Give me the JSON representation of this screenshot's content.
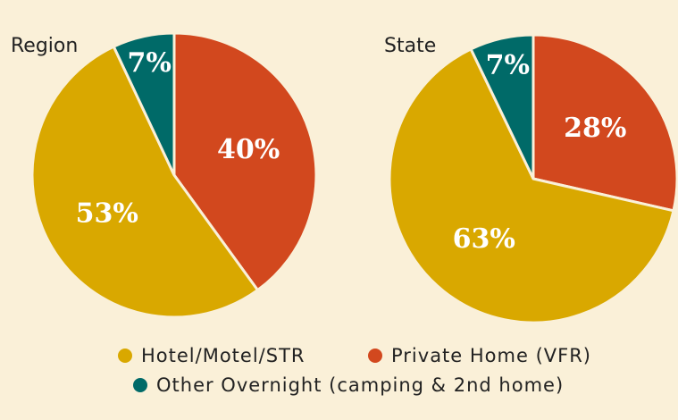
{
  "chart_data": [
    {
      "type": "pie",
      "title": "Region",
      "categories": [
        "Private Home (VFR)",
        "Hotel/Motel/STR",
        "Other Overnight (camping & 2nd home)"
      ],
      "values": [
        40,
        53,
        7
      ],
      "value_labels": [
        "40%",
        "53%",
        "7%"
      ],
      "colors": [
        "#d2481e",
        "#d9a800",
        "#006a68"
      ]
    },
    {
      "type": "pie",
      "title": "State",
      "categories": [
        "Private Home (VFR)",
        "Hotel/Motel/STR",
        "Other Overnight (camping & 2nd home)"
      ],
      "values": [
        28,
        63,
        7
      ],
      "value_labels": [
        "28%",
        "63%",
        "7%"
      ],
      "colors": [
        "#d2481e",
        "#d9a800",
        "#006a68"
      ]
    }
  ]
}
